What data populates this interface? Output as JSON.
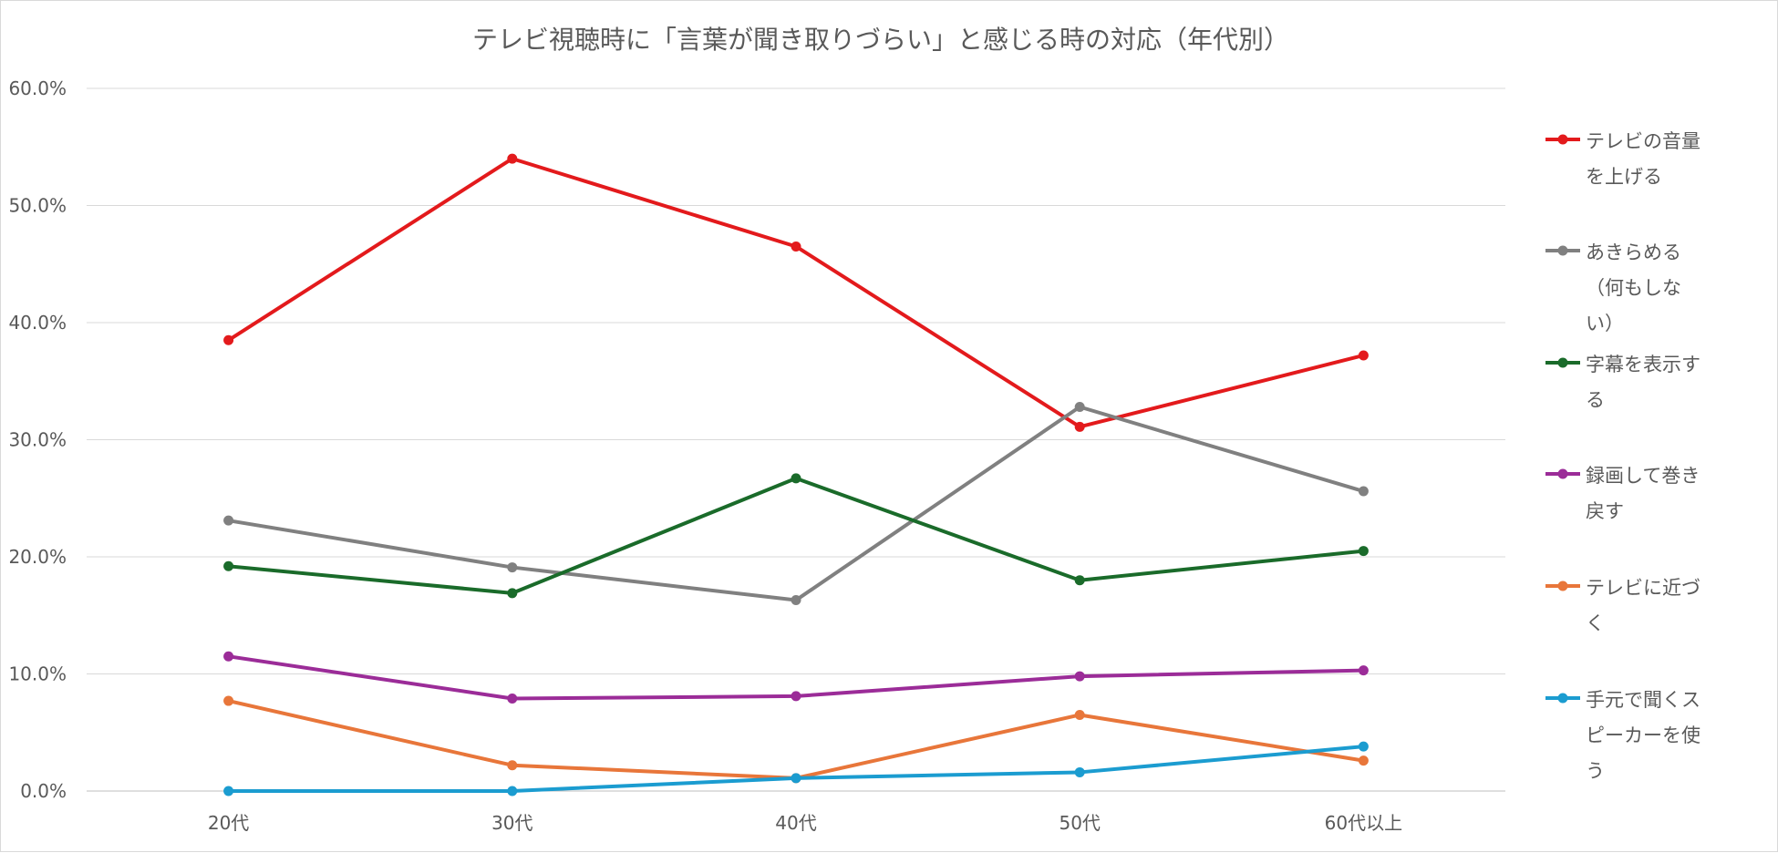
{
  "chart_data": {
    "type": "line",
    "title": "テレビ視聴時に「言葉が聞き取りづらい」と感じる時の対応（年代別）",
    "xlabel": "",
    "ylabel": "",
    "categories": [
      "20代",
      "30代",
      "40代",
      "50代",
      "60代以上"
    ],
    "ylim": [
      0,
      60
    ],
    "yticks": [
      "0.0%",
      "10.0%",
      "20.0%",
      "30.0%",
      "40.0%",
      "50.0%",
      "60.0%"
    ],
    "grid": true,
    "legend_position": "right",
    "series": [
      {
        "name": "テレビの音量を上げる",
        "legend_lines": [
          "テレビの音量",
          "を上げる"
        ],
        "color": "#e31a1c",
        "values": [
          38.5,
          54.0,
          46.5,
          31.1,
          37.2
        ]
      },
      {
        "name": "あきらめる（何もしない）",
        "legend_lines": [
          "あきらめる",
          "（何もしな",
          "い）"
        ],
        "color": "#808080",
        "values": [
          23.1,
          19.1,
          16.3,
          32.8,
          25.6
        ]
      },
      {
        "name": "字幕を表示する",
        "legend_lines": [
          "字幕を表示す",
          "る"
        ],
        "color": "#1a6b2a",
        "values": [
          19.2,
          16.9,
          26.7,
          18.0,
          20.5
        ]
      },
      {
        "name": "録画して巻き戻す",
        "legend_lines": [
          "録画して巻き",
          "戻す"
        ],
        "color": "#9b2c98",
        "values": [
          11.5,
          7.9,
          8.1,
          9.8,
          10.3
        ]
      },
      {
        "name": "テレビに近づく",
        "legend_lines": [
          "テレビに近づ",
          "く"
        ],
        "color": "#e8763a",
        "values": [
          7.7,
          2.2,
          1.1,
          6.5,
          2.6
        ]
      },
      {
        "name": "手元で聞くスピーカーを使う",
        "legend_lines": [
          "手元で聞くス",
          "ピーカーを使",
          "う"
        ],
        "color": "#1b9cd0",
        "values": [
          0.0,
          0.0,
          1.1,
          1.6,
          3.8
        ]
      }
    ]
  }
}
